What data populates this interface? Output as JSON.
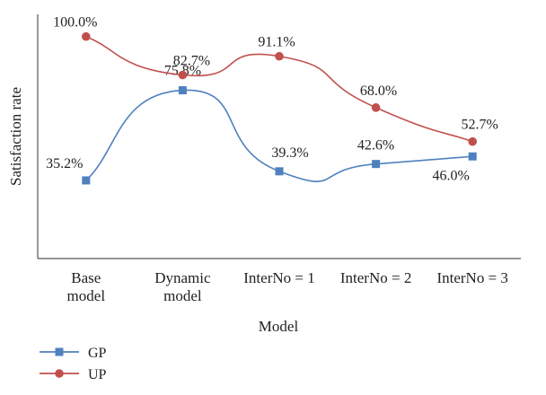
{
  "chart_data": {
    "type": "line",
    "xlabel": "Model",
    "ylabel": "Satisfaction rate",
    "categories": [
      [
        "Base",
        "model"
      ],
      [
        "Dynamic",
        "model"
      ],
      [
        "InterNo = 1"
      ],
      [
        "InterNo = 2"
      ],
      [
        "InterNo = 3"
      ]
    ],
    "ylim": [
      0,
      110
    ],
    "grid": false,
    "legend_position": "bottom-left",
    "series": [
      {
        "name": "GP",
        "color": "#4f81bd",
        "marker": "square",
        "values": [
          35.2,
          75.8,
          39.3,
          42.6,
          46.0
        ],
        "labels": [
          "35.2%",
          "75.8%",
          "39.3%",
          "42.6%",
          "46.0%"
        ]
      },
      {
        "name": "UP",
        "color": "#c0504d",
        "marker": "circle",
        "values": [
          100.0,
          82.7,
          91.1,
          68.0,
          52.7
        ],
        "labels": [
          "100.0%",
          "82.7%",
          "91.1%",
          "68.0%",
          "52.7%"
        ]
      }
    ]
  }
}
